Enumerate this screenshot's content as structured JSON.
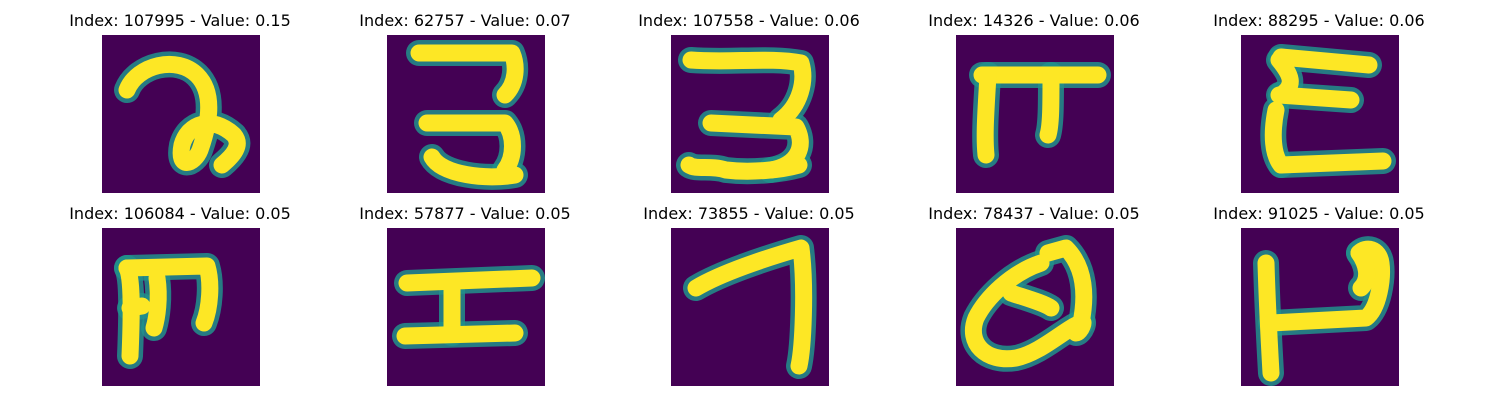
{
  "figure": {
    "panels": [
      {
        "label": "Index: 107995 - Value: 0.15",
        "index": "107995",
        "value": 0.15,
        "glyph": "g0"
      },
      {
        "label": "Index: 62757 - Value: 0.07",
        "index": "62757",
        "value": 0.07,
        "glyph": "g1"
      },
      {
        "label": "Index: 107558 - Value: 0.06",
        "index": "107558",
        "value": 0.06,
        "glyph": "g2"
      },
      {
        "label": "Index: 14326 - Value: 0.06",
        "index": "14326",
        "value": 0.06,
        "glyph": "g3"
      },
      {
        "label": "Index: 88295 - Value: 0.06",
        "index": "88295",
        "value": 0.06,
        "glyph": "g4"
      },
      {
        "label": "Index: 106084 - Value: 0.05",
        "index": "106084",
        "value": 0.05,
        "glyph": "g5"
      },
      {
        "label": "Index: 57877 - Value: 0.05",
        "index": "57877",
        "value": 0.05,
        "glyph": "g6"
      },
      {
        "label": "Index: 73855 - Value: 0.05",
        "index": "73855",
        "value": 0.05,
        "glyph": "g7"
      },
      {
        "label": "Index: 78437 - Value: 0.05",
        "index": "78437",
        "value": 0.05,
        "glyph": "g8"
      },
      {
        "label": "Index: 91025 - Value: 0.05",
        "index": "91025",
        "value": 0.05,
        "glyph": "g9"
      }
    ],
    "colors": {
      "background": "#440154",
      "edge": "#21918c",
      "stroke": "#fde725"
    }
  }
}
